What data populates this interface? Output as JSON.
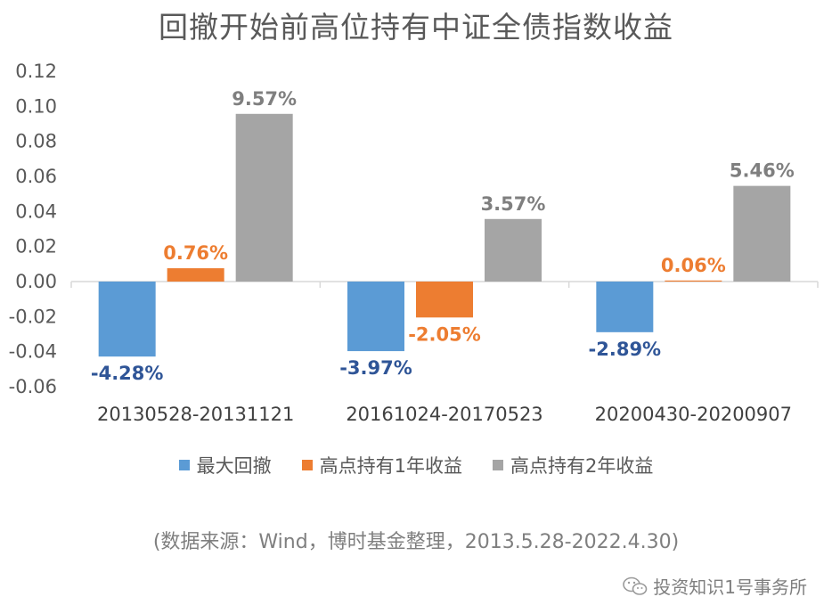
{
  "chart_data": {
    "type": "bar",
    "title": "回撤开始前高位持有中证全债指数收益",
    "categories": [
      "20130528-20131121",
      "20161024-20170523",
      "20200430-20200907"
    ],
    "series": [
      {
        "name": "最大回撤",
        "color": "#5b9bd5",
        "label_color": "#2f5597",
        "values": [
          -0.0428,
          -0.0397,
          -0.0289
        ],
        "labels": [
          "-4.28%",
          "-3.97%",
          "-2.89%"
        ]
      },
      {
        "name": "高点持有1年收益",
        "color": "#ed7d31",
        "label_color": "#ed7d31",
        "values": [
          0.0076,
          -0.0205,
          0.0006
        ],
        "labels": [
          "0.76%",
          "-2.05%",
          "0.06%"
        ]
      },
      {
        "name": "高点持有2年收益",
        "color": "#a5a5a5",
        "label_color": "#7f7f7f",
        "values": [
          0.0957,
          0.0357,
          0.0546
        ],
        "labels": [
          "9.57%",
          "3.57%",
          "5.46%"
        ]
      }
    ],
    "yticks": [
      "0.12",
      "0.10",
      "0.08",
      "0.06",
      "0.04",
      "0.02",
      "0.00",
      "-0.02",
      "-0.04",
      "-0.06"
    ],
    "ylim": [
      -0.06,
      0.12
    ],
    "grid": false,
    "legend_position": "bottom"
  },
  "source_note": "(数据来源：Wind，博时基金整理，2013.5.28-2022.4.30)",
  "watermark": {
    "icon": "wechat-icon",
    "text": "投资知识1号事务所"
  }
}
